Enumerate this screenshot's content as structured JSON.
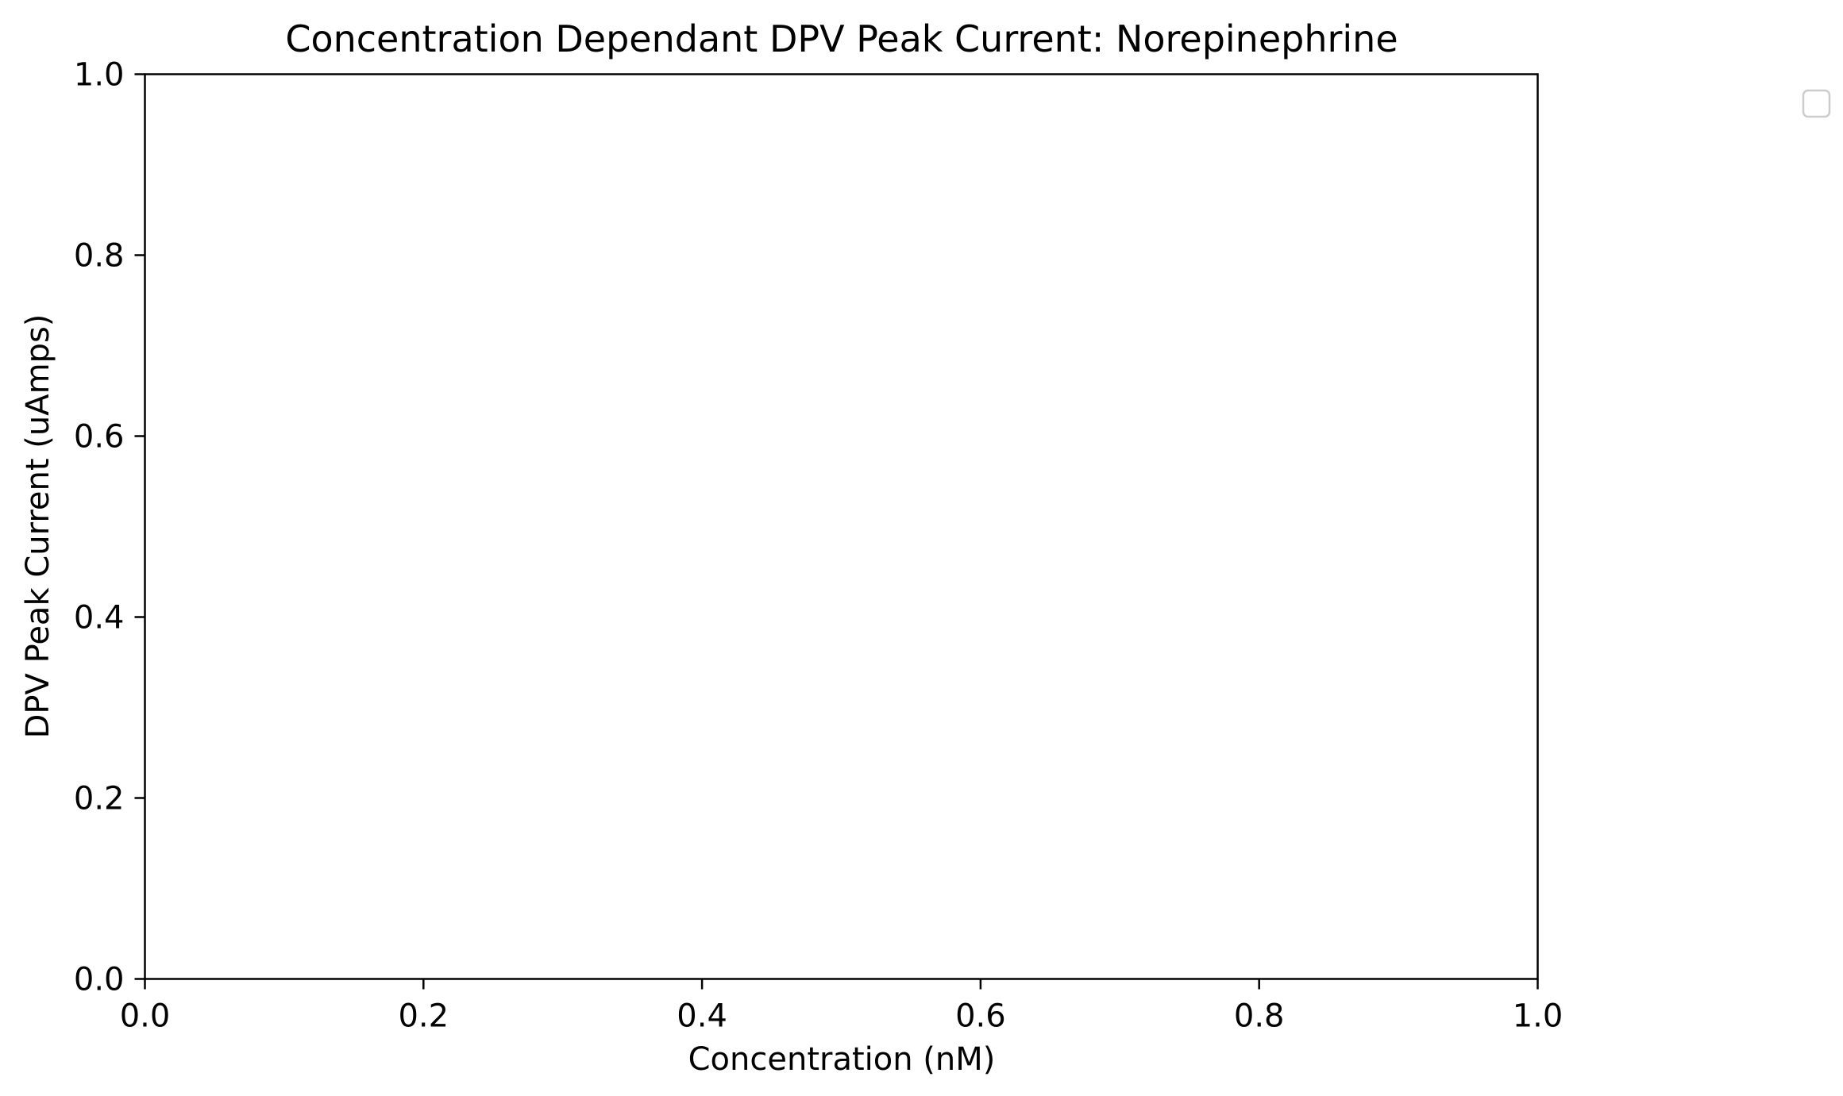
{
  "chart_data": {
    "type": "scatter",
    "title": "Concentration Dependant DPV Peak Current: Norepinephrine",
    "xlabel": "Concentration (nM)",
    "ylabel": "DPV Peak Current (uAmps)",
    "xlim": [
      0.0,
      1.0
    ],
    "ylim": [
      0.0,
      1.0
    ],
    "x_ticks": [
      "0.0",
      "0.2",
      "0.4",
      "0.6",
      "0.8",
      "1.0"
    ],
    "y_ticks": [
      "0.0",
      "0.2",
      "0.4",
      "0.6",
      "0.8",
      "1.0"
    ],
    "series": [],
    "grid": false,
    "legend": {
      "placement": "upper-right-outside",
      "entries": []
    }
  },
  "colors": {
    "axes": "#000000",
    "legend_border": "#cccccc",
    "background": "#ffffff"
  }
}
